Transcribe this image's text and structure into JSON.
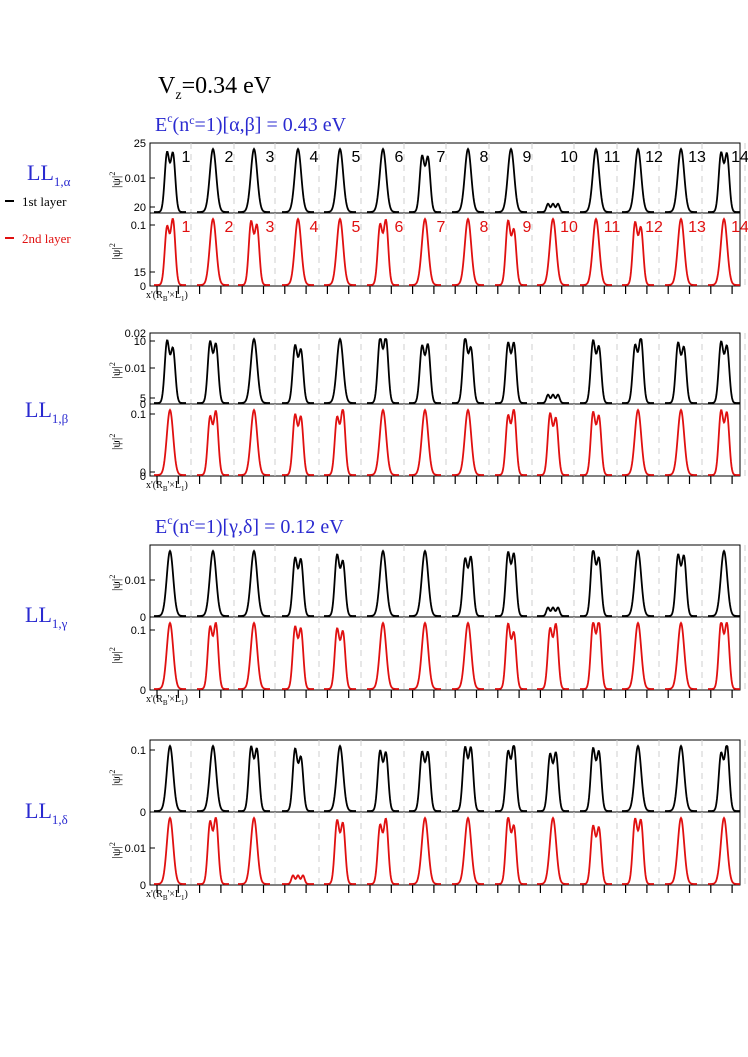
{
  "header": {
    "vz_main": "V",
    "vz_sub": "z",
    "vz_rest": "=0.34 eV",
    "energy_ab": {
      "e": "E",
      "sup": "c",
      "rest1": "(n",
      "sup2": "c",
      "rest2": "=1)[α,β] = 0.43 eV"
    },
    "energy_gd": {
      "e": "E",
      "sup": "c",
      "rest1": "(n",
      "sup2": "c",
      "rest2": "=1)[γ,δ] = 0.12 eV"
    }
  },
  "legend": {
    "items": [
      {
        "label": "1st layer",
        "color": "#000000"
      },
      {
        "label": "2nd layer",
        "color": "#e01010"
      }
    ]
  },
  "colors": {
    "label_blue": "#2a2ad0",
    "layer1": "#000000",
    "layer2": "#e01010"
  },
  "ll_labels": [
    {
      "main": "LL",
      "sub": "1,α"
    },
    {
      "main": "LL",
      "sub": "1,β"
    },
    {
      "main": "LL",
      "sub": "1,γ"
    },
    {
      "main": "LL",
      "sub": "1,δ"
    }
  ],
  "axis": {
    "ylabel": "|ψ|",
    "ylabel_sup": "2",
    "xlabel": "x'(R",
    "xlabel_sub1": "B",
    "xlabel_mid": "'×L",
    "xlabel_sub2": "1",
    "xlabel_end": ")"
  },
  "chart_data": [
    {
      "type": "line",
      "name": "LL1,alpha",
      "peaks": [
        "1",
        "2",
        "3",
        "4",
        "5",
        "6",
        "7",
        "8",
        "9",
        "10",
        "11",
        "12",
        "13",
        "14"
      ],
      "top": {
        "layer": "1st layer",
        "ticks": [
          "25",
          "0.01",
          "20"
        ],
        "shapes": [
          2,
          1,
          1,
          1,
          1,
          1,
          2,
          1,
          1,
          3,
          1,
          1,
          1,
          2
        ]
      },
      "bottom": {
        "layer": "2nd layer",
        "ticks": [
          "0.1",
          "15",
          "0"
        ],
        "shapes": [
          2,
          1,
          2,
          1,
          1,
          2,
          1,
          1,
          2,
          1,
          1,
          2,
          1,
          1
        ]
      }
    },
    {
      "type": "line",
      "name": "LL1,beta",
      "top": {
        "layer": "1st layer",
        "ticks": [
          "0.02",
          "10",
          "0.01",
          "5",
          "0"
        ],
        "shapes": [
          2,
          2,
          1,
          2,
          1,
          2,
          2,
          2,
          2,
          3,
          2,
          2,
          2,
          2
        ]
      },
      "bottom": {
        "layer": "2nd layer",
        "ticks": [
          "0.1",
          "0",
          "0"
        ],
        "shapes": [
          1,
          2,
          1,
          2,
          2,
          1,
          1,
          1,
          2,
          2,
          2,
          1,
          1,
          2
        ]
      }
    },
    {
      "type": "line",
      "name": "LL1,gamma",
      "top": {
        "layer": "1st layer",
        "ticks": [
          "0.01",
          "0"
        ],
        "shapes": [
          1,
          1,
          1,
          2,
          2,
          1,
          1,
          2,
          2,
          3,
          2,
          1,
          2,
          1
        ]
      },
      "bottom": {
        "layer": "2nd layer",
        "ticks": [
          "0.1",
          "0"
        ],
        "shapes": [
          1,
          2,
          1,
          2,
          2,
          1,
          1,
          1,
          2,
          2,
          2,
          1,
          1,
          2
        ]
      }
    },
    {
      "type": "line",
      "name": "LL1,delta",
      "top": {
        "layer": "1st layer",
        "ticks": [
          "0.1",
          "0"
        ],
        "shapes": [
          1,
          1,
          2,
          2,
          1,
          2,
          2,
          2,
          2,
          2,
          2,
          1,
          1,
          2
        ]
      },
      "bottom": {
        "layer": "2nd layer",
        "ticks": [
          "0.01",
          "0"
        ],
        "shapes": [
          1,
          2,
          1,
          3,
          2,
          2,
          1,
          1,
          2,
          1,
          2,
          2,
          1,
          1
        ]
      }
    }
  ]
}
